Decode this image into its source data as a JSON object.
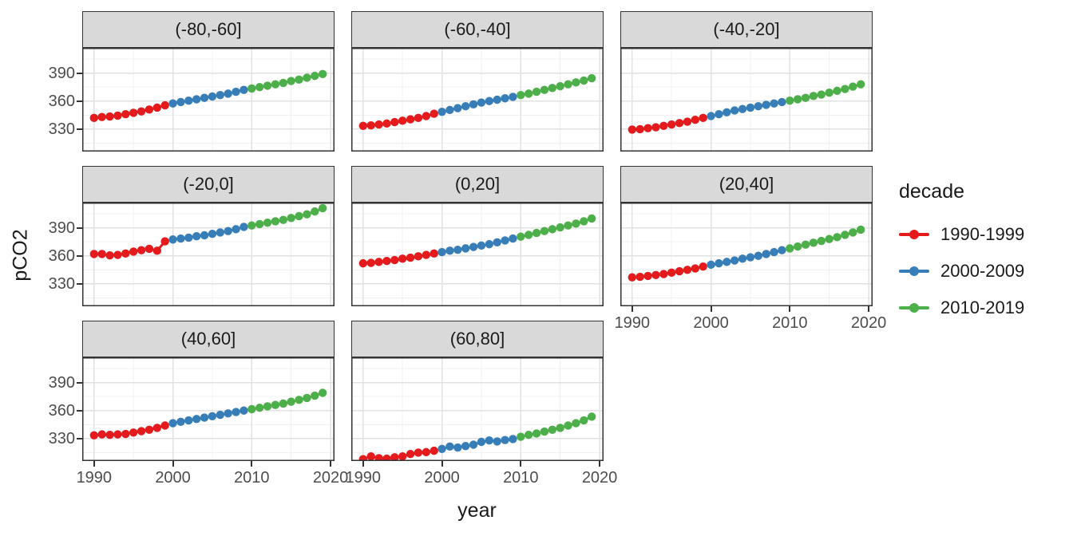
{
  "axes": {
    "x_label": "year",
    "y_label": "pCO2"
  },
  "legend": {
    "title": "decade",
    "entries": [
      {
        "label": "1990-1999",
        "color": "#E41A1C"
      },
      {
        "label": "2000-2009",
        "color": "#377EB8"
      },
      {
        "label": "2010-2019",
        "color": "#4DAF4A"
      }
    ]
  },
  "theme": {
    "background": "#ffffff",
    "strip_bg": "#d9d9d9",
    "panel_border": "#333333",
    "grid_major": "#e2e2e2",
    "grid_minor": "#f0f0f0",
    "tick_label_color": "#4d4d4d",
    "tick_mark_color": "#333333"
  },
  "chart_data": {
    "type": "line",
    "title": "",
    "xlabel": "year",
    "ylabel": "pCO2",
    "grid": "on",
    "legend_position": "right",
    "x": [
      1990,
      1991,
      1992,
      1993,
      1994,
      1995,
      1996,
      1997,
      1998,
      1999,
      2000,
      2001,
      2002,
      2003,
      2004,
      2005,
      2006,
      2007,
      2008,
      2009,
      2010,
      2011,
      2012,
      2013,
      2014,
      2015,
      2016,
      2017,
      2018,
      2019
    ],
    "x_ticks": [
      1990,
      2000,
      2010,
      2020
    ],
    "x_minor": [
      1995,
      2005,
      2015
    ],
    "y_ticks": [
      330,
      360,
      390
    ],
    "y_minor": [
      315,
      345,
      375,
      405
    ],
    "xlim": [
      1988.5,
      2020.5
    ],
    "ylim": [
      306,
      417
    ],
    "decades": [
      {
        "name": "1990-1999",
        "color": "#E41A1C",
        "from": 1990,
        "to": 1999
      },
      {
        "name": "2000-2009",
        "color": "#377EB8",
        "from": 2000,
        "to": 2009
      },
      {
        "name": "2010-2019",
        "color": "#4DAF4A",
        "from": 2010,
        "to": 2019
      }
    ],
    "facets": [
      {
        "label": "(-80,-60]",
        "values": [
          342,
          343,
          343.5,
          344.5,
          346,
          347.5,
          349,
          351,
          353,
          355.5,
          357.5,
          359,
          360.5,
          362,
          363.5,
          365,
          366.5,
          368,
          370,
          372,
          373.5,
          375,
          376.5,
          378,
          379.5,
          381.5,
          383,
          385,
          387,
          389
        ]
      },
      {
        "label": "(-60,-40]",
        "values": [
          333.5,
          334,
          335,
          336,
          337.5,
          339,
          340.5,
          342,
          344,
          346.5,
          348.5,
          350.5,
          352.5,
          354.5,
          356.5,
          358.5,
          360,
          361.5,
          363,
          364.5,
          366.5,
          368,
          370,
          372,
          374,
          376,
          378,
          380,
          382,
          384.5
        ]
      },
      {
        "label": "(-40,-20]",
        "values": [
          329.5,
          330,
          331,
          332,
          333.5,
          335,
          336.5,
          338,
          340,
          342,
          344,
          346,
          348,
          350,
          351.5,
          353,
          354.5,
          356,
          357.5,
          359,
          360.5,
          362,
          363.5,
          365.5,
          367,
          369,
          371,
          373,
          375.5,
          378
        ]
      },
      {
        "label": "(-20,0]",
        "values": [
          362,
          362,
          360.5,
          361,
          362.5,
          364.5,
          366,
          367.5,
          365.5,
          375.5,
          377.5,
          378.5,
          379.5,
          381,
          382,
          383.5,
          385,
          386.5,
          388.5,
          391,
          392.5,
          394,
          395.5,
          397,
          398.5,
          400.5,
          402.5,
          404.5,
          407.5,
          411
        ]
      },
      {
        "label": "(0,20]",
        "values": [
          352,
          352.5,
          353.5,
          354.5,
          355.5,
          357,
          358,
          359.5,
          361,
          362.5,
          364,
          365.5,
          366.5,
          368,
          369.5,
          371,
          372.5,
          374.5,
          376.5,
          378.5,
          380.5,
          382.5,
          384.5,
          386.5,
          388.5,
          390.5,
          392.5,
          394.5,
          397,
          400
        ]
      },
      {
        "label": "(20,40]",
        "values": [
          337,
          337.5,
          338.5,
          339.5,
          340.5,
          342,
          343.5,
          345,
          346.5,
          348.5,
          350.5,
          352,
          353.5,
          355,
          357,
          358.5,
          360,
          362,
          364,
          366,
          368,
          370,
          372,
          374,
          376,
          378,
          380,
          382.5,
          385,
          388
        ]
      },
      {
        "label": "(40,60]",
        "values": [
          333.5,
          334.5,
          334,
          334.5,
          335,
          336.5,
          338,
          339.5,
          341.5,
          344,
          346.5,
          348,
          349.5,
          351,
          352.5,
          354,
          355.5,
          357,
          358.5,
          360,
          361.5,
          363,
          364.5,
          366,
          367.5,
          369.5,
          371.5,
          373.5,
          376,
          379
        ]
      },
      {
        "label": "(60,80]",
        "values": [
          308,
          311,
          309,
          308.5,
          310,
          311,
          313.5,
          315,
          315.5,
          317,
          319,
          321.5,
          320.5,
          322,
          323.5,
          326.5,
          328,
          327,
          328.5,
          329.5,
          332,
          334,
          335.5,
          337.5,
          339.5,
          341.5,
          344,
          346.5,
          349.5,
          353.5
        ]
      }
    ]
  }
}
